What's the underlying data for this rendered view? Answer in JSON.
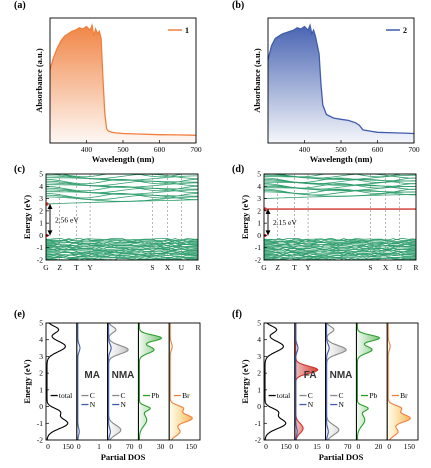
{
  "chart_data": [
    {
      "id": "a",
      "panel_label": "(a)",
      "type": "area",
      "xlabel": "Wavelength (nm)",
      "ylabel": "Absorbance (a.u.)",
      "xlim": [
        300,
        700
      ],
      "xticks": [
        "400",
        "500",
        "600",
        "700"
      ],
      "legend": "1",
      "legend_position": "top-right",
      "color": "#f07f3c",
      "x": [
        300,
        310,
        320,
        330,
        340,
        350,
        360,
        370,
        380,
        390,
        400,
        410,
        415,
        420,
        425,
        430,
        435,
        440,
        445,
        450,
        455,
        460,
        470,
        480,
        500,
        550,
        600,
        650,
        700
      ],
      "y": [
        0.62,
        0.72,
        0.8,
        0.86,
        0.9,
        0.92,
        0.94,
        0.95,
        0.97,
        0.96,
        0.98,
        0.95,
        0.99,
        0.9,
        0.96,
        0.92,
        0.94,
        0.88,
        0.55,
        0.25,
        0.12,
        0.1,
        0.09,
        0.085,
        0.08,
        0.075,
        0.07,
        0.068,
        0.065
      ]
    },
    {
      "id": "b",
      "panel_label": "(b)",
      "type": "area",
      "xlabel": "Wavelength (nm)",
      "ylabel": "Absorbance (a.u.)",
      "xlim": [
        300,
        700
      ],
      "xticks": [
        "400",
        "500",
        "600",
        "700"
      ],
      "legend": "2",
      "legend_position": "top-right",
      "color": "#3f5cae",
      "x": [
        300,
        310,
        320,
        330,
        340,
        350,
        360,
        370,
        380,
        390,
        400,
        410,
        415,
        420,
        425,
        430,
        440,
        445,
        450,
        460,
        480,
        500,
        520,
        540,
        550,
        560,
        580,
        600,
        650,
        700
      ],
      "y": [
        0.7,
        0.82,
        0.88,
        0.9,
        0.92,
        0.93,
        0.94,
        0.95,
        0.97,
        0.96,
        0.98,
        0.95,
        0.99,
        0.92,
        0.95,
        0.9,
        0.75,
        0.5,
        0.32,
        0.24,
        0.21,
        0.2,
        0.19,
        0.17,
        0.15,
        0.11,
        0.1,
        0.09,
        0.085,
        0.08
      ]
    },
    {
      "id": "c",
      "panel_label": "(c)",
      "type": "line",
      "ylabel": "Energy (eV)",
      "ylim": [
        -2,
        5
      ],
      "yticks": [
        "-2",
        "-1",
        "0",
        "1",
        "2",
        "3",
        "4",
        "5"
      ],
      "kpoints": [
        "G",
        "Z",
        "T",
        "Y",
        "S",
        "X",
        "U",
        "R"
      ],
      "gap_label": "2.56 eV",
      "band_color": "#2e9e6c",
      "vbm": 0,
      "cbm": 2.56,
      "valence_band_range": [
        -2,
        -0.3
      ],
      "conduction_band_range": [
        2.56,
        5
      ],
      "midgap_band": null
    },
    {
      "id": "d",
      "panel_label": "(d)",
      "type": "line",
      "ylabel": "Energy (eV)",
      "ylim": [
        -2,
        5
      ],
      "yticks": [
        "-2",
        "-1",
        "0",
        "1",
        "2",
        "3",
        "4",
        "5"
      ],
      "kpoints": [
        "G",
        "Z",
        "T",
        "Y",
        "S",
        "X",
        "U",
        "R"
      ],
      "gap_label": "2.15 eV",
      "band_color": "#2e9e6c",
      "vbm": 0,
      "cbm": 2.15,
      "valence_band_range": [
        -2,
        -0.3
      ],
      "conduction_band_range": [
        3.0,
        5
      ],
      "midgap_band": 2.15,
      "midgap_color": "#d0342c"
    },
    {
      "id": "e",
      "panel_label": "(e)",
      "type": "line",
      "xlabel": "Partial DOS",
      "ylabel": "Energy (eV)",
      "ylim": [
        -2,
        5
      ],
      "yticks": [
        "-2",
        "-1",
        "0",
        "1",
        "2",
        "3",
        "4",
        "5"
      ],
      "sub_panels": [
        {
          "legend": [
            "total"
          ],
          "xticks": [
            "0",
            "150"
          ],
          "colors": [
            "#000000"
          ],
          "big_label": ""
        },
        {
          "legend": [
            "C",
            "N"
          ],
          "xticks": [
            "0",
            "1"
          ],
          "colors": [
            "#888888",
            "#3f5cae"
          ],
          "big_label": "MA"
        },
        {
          "legend": [
            "C",
            "N"
          ],
          "xticks": [
            "0",
            "70"
          ],
          "colors": [
            "#888888",
            "#3f5cae"
          ],
          "big_label": "NMA"
        },
        {
          "legend": [
            "Pb"
          ],
          "xticks": [
            "0",
            "30"
          ],
          "colors": [
            "#2aa02a"
          ],
          "big_label": ""
        },
        {
          "legend": [
            "Br"
          ],
          "xticks": [
            "0",
            "150"
          ],
          "colors": [
            "#f07f3c"
          ],
          "big_label": ""
        }
      ]
    },
    {
      "id": "f",
      "panel_label": "(f)",
      "type": "line",
      "xlabel": "Partial DOS",
      "ylabel": "Energy (eV)",
      "ylim": [
        -2,
        5
      ],
      "yticks": [
        "-2",
        "-1",
        "0",
        "1",
        "2",
        "3",
        "4",
        "5"
      ],
      "sub_panels": [
        {
          "legend": [
            "total"
          ],
          "xticks": [
            "0",
            "150"
          ],
          "colors": [
            "#000000"
          ],
          "big_label": ""
        },
        {
          "legend": [
            "C",
            "N"
          ],
          "xticks": [
            "0",
            "15"
          ],
          "colors": [
            "#888888",
            "#3f5cae"
          ],
          "big_label": "FA"
        },
        {
          "legend": [
            "C",
            "N"
          ],
          "xticks": [
            "0",
            "70"
          ],
          "colors": [
            "#888888",
            "#3f5cae"
          ],
          "big_label": "NMA"
        },
        {
          "legend": [
            "Pb"
          ],
          "xticks": [
            "0",
            "20"
          ],
          "colors": [
            "#2aa02a"
          ],
          "big_label": ""
        },
        {
          "legend": [
            "Br"
          ],
          "xticks": [
            "0",
            "150"
          ],
          "colors": [
            "#f07f3c"
          ],
          "big_label": ""
        }
      ]
    }
  ]
}
